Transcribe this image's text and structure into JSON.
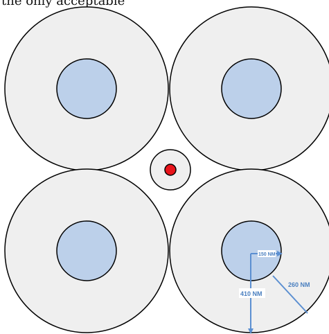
{
  "header": {
    "partial_text": "the only acceptable"
  },
  "diagram": {
    "colors": {
      "outer_fill": "#efefef",
      "inner_fill": "#bcd0ea",
      "stroke": "#000000",
      "center_dot": "#e8141b",
      "arrow": "#5b8fd1",
      "label": "#4a7fbf"
    },
    "labels": {
      "r150": "150 NM",
      "r260": "260 NM",
      "r410": "410 NM"
    }
  }
}
